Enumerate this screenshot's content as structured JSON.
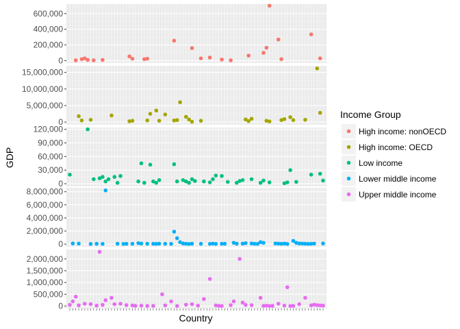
{
  "chart_data": {
    "type": "scatter",
    "xlabel": "Country",
    "ylabel": "GDP",
    "grid": true,
    "legend": {
      "title": "Income Group",
      "position": "right"
    },
    "x_tick_labels_shown": false,
    "series": [
      {
        "name": "High income: nonOECD",
        "color": "#F8766D",
        "ylim": [
          -30000,
          720000
        ],
        "yticks": [
          0,
          200000,
          400000,
          600000
        ],
        "ytick_labels": [
          "0",
          "200,000",
          "400,000",
          "600,000"
        ],
        "x": [
          3,
          5,
          6,
          7,
          9,
          12,
          21,
          22,
          26,
          27,
          36,
          42,
          45,
          48,
          52,
          55,
          61,
          66,
          67,
          68,
          71,
          72,
          82,
          85
        ],
        "y": [
          5000,
          20000,
          30000,
          10000,
          5000,
          10000,
          55000,
          25000,
          20000,
          25000,
          255000,
          160000,
          30000,
          40000,
          15000,
          5000,
          65000,
          100000,
          165000,
          700000,
          270000,
          20000,
          335000,
          30000
        ]
      },
      {
        "name": "High income: OECD",
        "color": "#A3A500",
        "ylim": [
          -800000,
          17000000
        ],
        "yticks": [
          0,
          5000000,
          10000000,
          15000000
        ],
        "ytick_labels": [
          "0",
          "5,000,000",
          "10,000,000",
          "15,000,000"
        ],
        "x": [
          4,
          5,
          8,
          15,
          21,
          22,
          27,
          28,
          30,
          31,
          33,
          36,
          37,
          38,
          40,
          41,
          42,
          45,
          60,
          61,
          62,
          67,
          68,
          72,
          73,
          75,
          76,
          80,
          84,
          85
        ],
        "y": [
          1800000,
          500000,
          700000,
          2000000,
          250000,
          400000,
          500000,
          2500000,
          3500000,
          400000,
          2300000,
          500000,
          600000,
          6000000,
          1600000,
          800000,
          100000,
          400000,
          800000,
          300000,
          1000000,
          400000,
          200000,
          600000,
          900000,
          1500000,
          600000,
          700000,
          16200000,
          2800000
        ]
      },
      {
        "name": "Low income",
        "color": "#00BF7D",
        "ylim": [
          -6000,
          124000
        ],
        "yticks": [
          0,
          30000,
          60000,
          90000,
          120000
        ],
        "ytick_labels": [
          "0",
          "30,000",
          "60,000",
          "90,000",
          "120,000"
        ],
        "x": [
          1,
          7,
          9,
          11,
          12,
          13,
          14,
          16,
          17,
          18,
          24,
          25,
          26,
          28,
          29,
          30,
          31,
          36,
          37,
          39,
          40,
          41,
          42,
          43,
          46,
          48,
          49,
          50,
          52,
          54,
          57,
          58,
          59,
          62,
          65,
          66,
          68,
          73,
          74,
          75,
          77,
          82,
          85,
          86
        ],
        "y": [
          20000,
          120000,
          10000,
          12000,
          15000,
          5000,
          10000,
          15000,
          2000,
          17000,
          5000,
          45000,
          2000,
          42000,
          5000,
          2000,
          8000,
          43000,
          5000,
          8000,
          5000,
          2000,
          10000,
          6000,
          5000,
          3000,
          10000,
          18000,
          17000,
          4000,
          2000,
          6000,
          8000,
          10000,
          2000,
          7000,
          3000,
          1000,
          3000,
          30000,
          4000,
          20000,
          22000,
          7000
        ]
      },
      {
        "name": "Lower middle income",
        "color": "#00B0F6",
        "ylim": [
          -400000,
          8600000
        ],
        "yticks": [
          0,
          2000000,
          4000000,
          6000000,
          8000000
        ],
        "ytick_labels": [
          "0",
          "2,000,000",
          "4,000,000",
          "6,000,000",
          "8,000,000"
        ],
        "x": [
          2,
          4,
          8,
          10,
          12,
          13,
          17,
          19,
          20,
          22,
          24,
          25,
          27,
          29,
          30,
          31,
          33,
          35,
          36,
          37,
          38,
          39,
          40,
          41,
          42,
          45,
          48,
          49,
          50,
          52,
          53,
          56,
          57,
          59,
          60,
          62,
          63,
          64,
          65,
          66,
          70,
          71,
          72,
          73,
          74,
          76,
          77,
          78,
          79,
          80,
          81,
          82,
          83,
          86
        ],
        "y": [
          100000,
          80000,
          30000,
          50000,
          40000,
          8200000,
          60000,
          30000,
          50000,
          50000,
          150000,
          80000,
          60000,
          50000,
          40000,
          70000,
          50000,
          40000,
          1900000,
          900000,
          300000,
          100000,
          50000,
          30000,
          60000,
          50000,
          40000,
          80000,
          40000,
          50000,
          60000,
          200000,
          60000,
          70000,
          150000,
          100000,
          50000,
          40000,
          300000,
          200000,
          100000,
          80000,
          50000,
          80000,
          30000,
          500000,
          200000,
          100000,
          80000,
          60000,
          40000,
          50000,
          80000,
          100000
        ]
      },
      {
        "name": "Upper middle income",
        "color": "#E76BF3",
        "ylim": [
          -100000,
          2400000
        ],
        "yticks": [
          0,
          500000,
          1000000,
          1500000,
          2000000
        ],
        "ytick_labels": [
          "0",
          "500,000",
          "1,000,000",
          "1,500,000",
          "2,000,000"
        ],
        "x": [
          1,
          2,
          3,
          4,
          6,
          8,
          10,
          11,
          12,
          13,
          15,
          16,
          18,
          20,
          22,
          23,
          25,
          27,
          29,
          32,
          33,
          35,
          37,
          40,
          42,
          44,
          46,
          48,
          50,
          51,
          52,
          55,
          56,
          58,
          59,
          60,
          62,
          65,
          66,
          67,
          68,
          69,
          71,
          73,
          74,
          75,
          76,
          78,
          80,
          82,
          83,
          84,
          85,
          86
        ],
        "y": [
          50000,
          200000,
          400000,
          30000,
          100000,
          80000,
          20000,
          2300000,
          50000,
          250000,
          350000,
          80000,
          100000,
          40000,
          30000,
          10000,
          20000,
          5000,
          10000,
          500000,
          30000,
          200000,
          5000,
          60000,
          80000,
          20000,
          300000,
          1150000,
          30000,
          10000,
          5000,
          40000,
          200000,
          2000000,
          150000,
          50000,
          40000,
          350000,
          10000,
          20000,
          5000,
          10000,
          100000,
          20000,
          800000,
          5000,
          10000,
          80000,
          350000,
          30000,
          60000,
          40000,
          30000,
          20000
        ]
      }
    ]
  }
}
